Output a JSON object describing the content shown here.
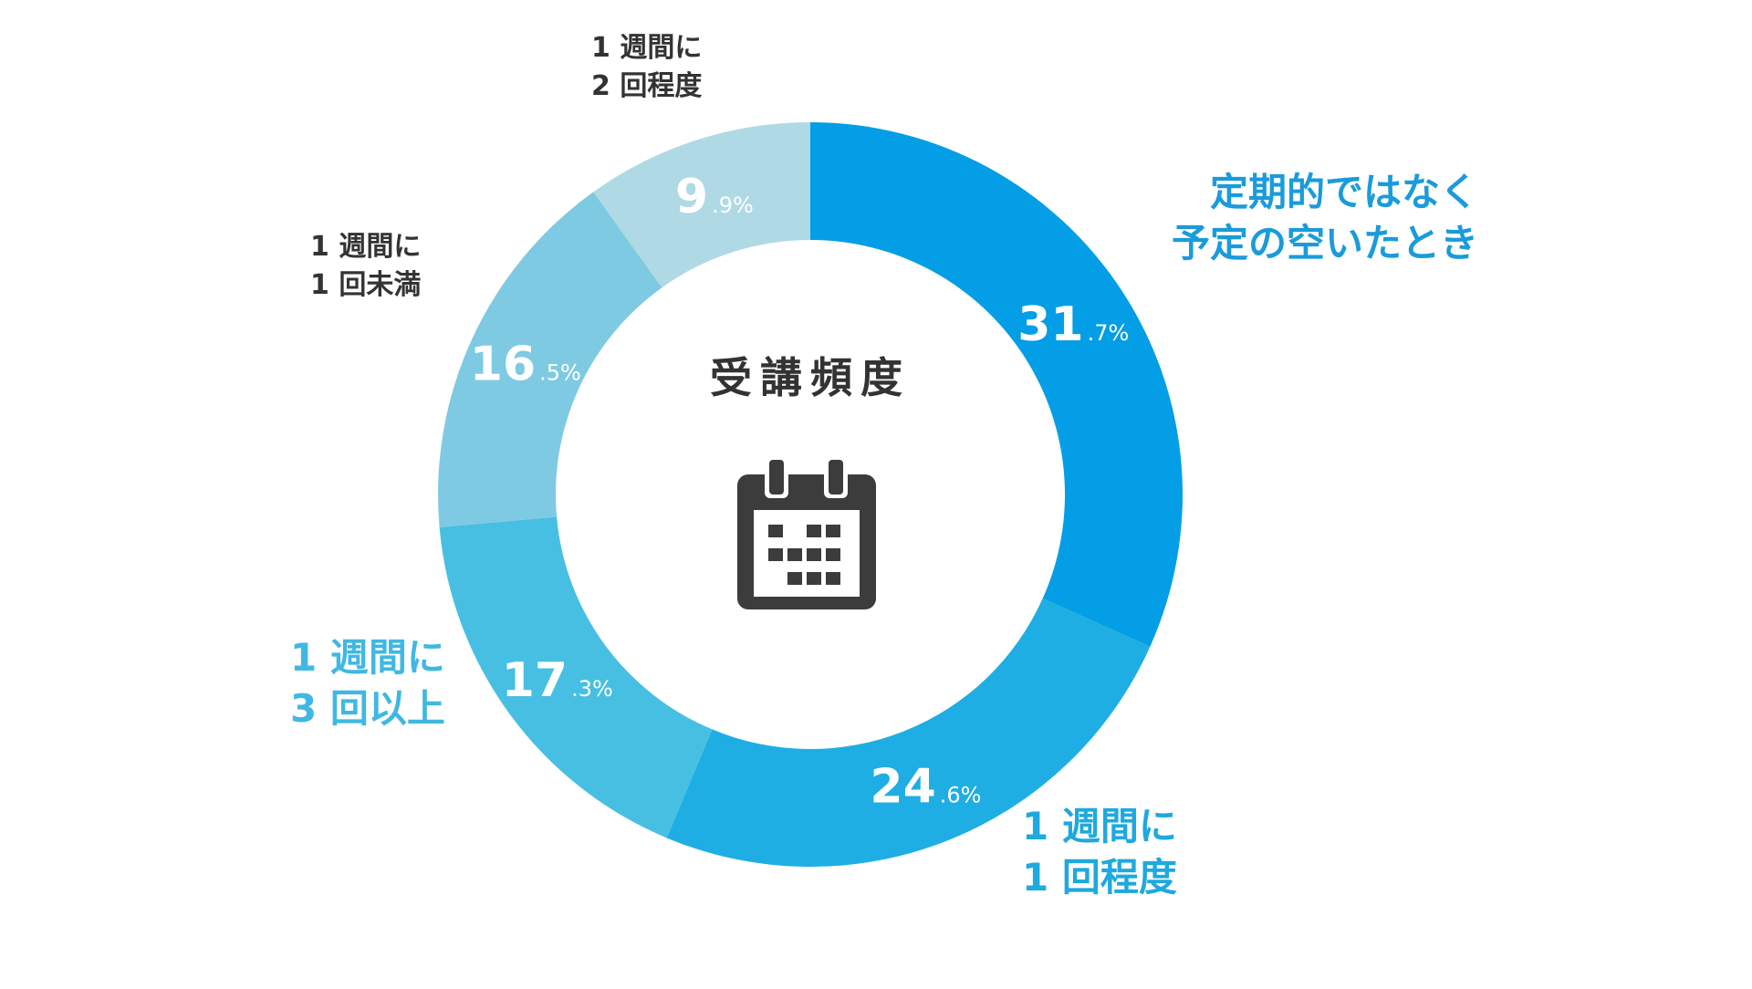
{
  "chart_data": {
    "type": "pie",
    "variant": "donut",
    "title": "受講頻度",
    "center_icon": "calendar-icon",
    "legend": "none",
    "categories": [
      "定期的ではなく予定の空いたとき",
      "1週間に1回程度",
      "1週間に3回以上",
      "1週間に1回未満",
      "1週間に2回程度"
    ],
    "values": [
      31.7,
      24.6,
      17.3,
      16.5,
      9.9
    ],
    "unit": "%",
    "slices": [
      {
        "label_lines": [
          "定期的ではなく",
          "予定の空いたとき"
        ],
        "value": 31.7,
        "value_int": "31",
        "value_dec": ".7%",
        "color": "#039EE6",
        "label_color": "#1A9BDB"
      },
      {
        "label_lines": [
          "1 週間に",
          "1 回程度"
        ],
        "value": 24.6,
        "value_int": "24",
        "value_dec": ".6%",
        "color": "#1EAEE3",
        "label_color": "#1EA9DF"
      },
      {
        "label_lines": [
          "1 週間に",
          "3 回以上"
        ],
        "value": 17.3,
        "value_int": "17",
        "value_dec": ".3%",
        "color": "#47BFE3",
        "label_color": "#3FB8E2"
      },
      {
        "label_lines": [
          "1 週間に",
          "1 回未満"
        ],
        "value": 16.5,
        "value_int": "16",
        "value_dec": ".5%",
        "color": "#7ECAE2",
        "label_color": "#333333"
      },
      {
        "label_lines": [
          "1 週間に",
          "2 回程度"
        ],
        "value": 9.9,
        "value_int": "9",
        "value_dec": ".9%",
        "color": "#AFD9E5",
        "label_color": "#333333"
      }
    ],
    "colors": {
      "title": "#333333",
      "icon": "#3C3C3C",
      "value_text": "#FFFFFF"
    }
  }
}
